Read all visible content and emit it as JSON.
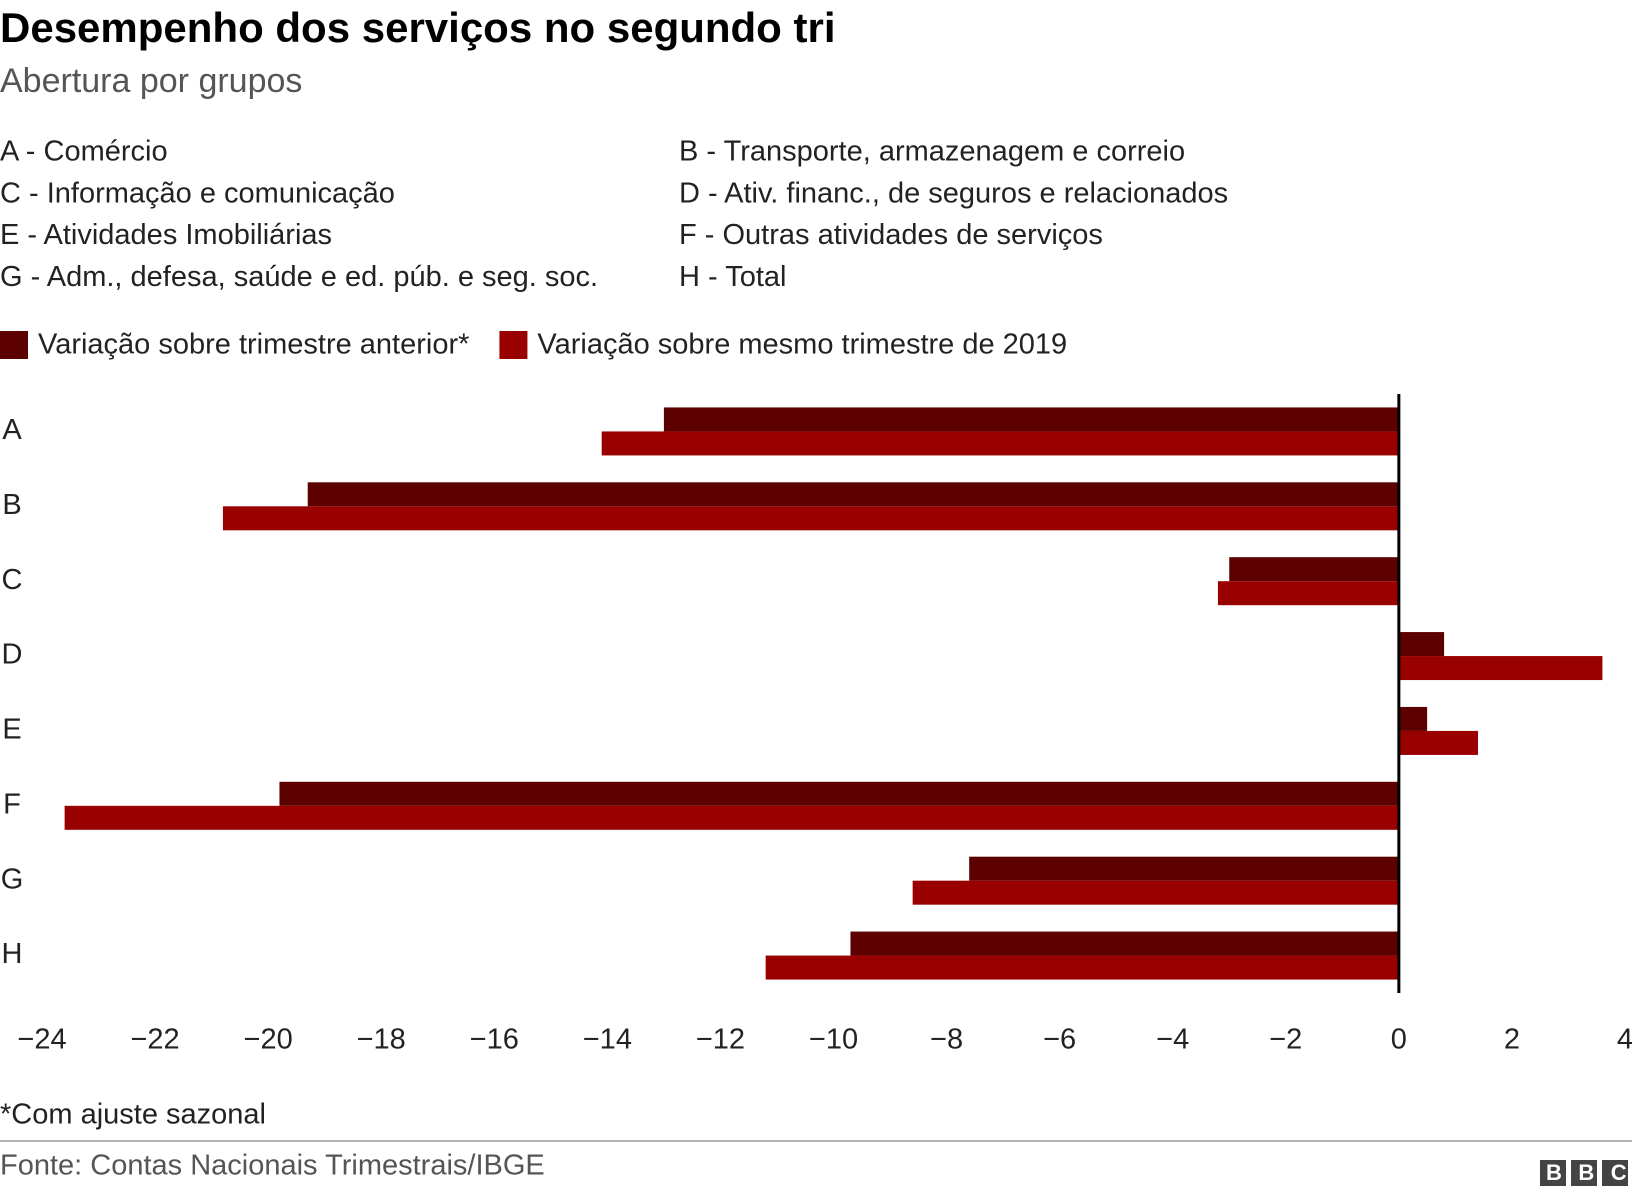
{
  "chart_data": {
    "type": "bar",
    "orientation": "horizontal",
    "title": "Desempenho dos serviços no segundo tri",
    "subtitle": "Abertura por grupos",
    "group_labels": [
      "A - Comércio",
      "B - Transporte, armazenagem e correio",
      "C - Informação e comunicação",
      "D - Ativ. financ., de seguros e relacionados",
      "E - Atividades Imobiliárias",
      "F - Outras atividades de serviços",
      "G - Adm., defesa, saúde e ed. púb. e seg. soc.",
      "H - Total"
    ],
    "categories": [
      "A",
      "B",
      "C",
      "D",
      "E",
      "F",
      "G",
      "H"
    ],
    "series": [
      {
        "name": "Variação sobre trimestre anterior*",
        "color": "#5c0000",
        "values": [
          -13.0,
          -19.3,
          -3.0,
          0.8,
          0.5,
          -19.8,
          -7.6,
          -9.7
        ]
      },
      {
        "name": "Variação sobre mesmo trimestre de 2019",
        "color": "#990000",
        "values": [
          -14.1,
          -20.8,
          -3.2,
          3.6,
          1.4,
          -23.6,
          -8.6,
          -11.2
        ]
      }
    ],
    "xlim": [
      -24,
      4
    ],
    "xticks": [
      {
        "value": -24,
        "label": "−24"
      },
      {
        "value": -22,
        "label": "−22"
      },
      {
        "value": -20,
        "label": "−20"
      },
      {
        "value": -18,
        "label": "−18"
      },
      {
        "value": -16,
        "label": "−16"
      },
      {
        "value": -14,
        "label": "−14"
      },
      {
        "value": -12,
        "label": "−12"
      },
      {
        "value": -10,
        "label": "−10"
      },
      {
        "value": -8,
        "label": "−8"
      },
      {
        "value": -6,
        "label": "−6"
      },
      {
        "value": -4,
        "label": "−4"
      },
      {
        "value": -2,
        "label": "−2"
      },
      0,
      2,
      4
    ],
    "grid": false,
    "footnote": "*Com ajuste sazonal",
    "source": "Fonte: Contas Nacionais Trimestrais/IBGE",
    "logo": "BBC"
  }
}
